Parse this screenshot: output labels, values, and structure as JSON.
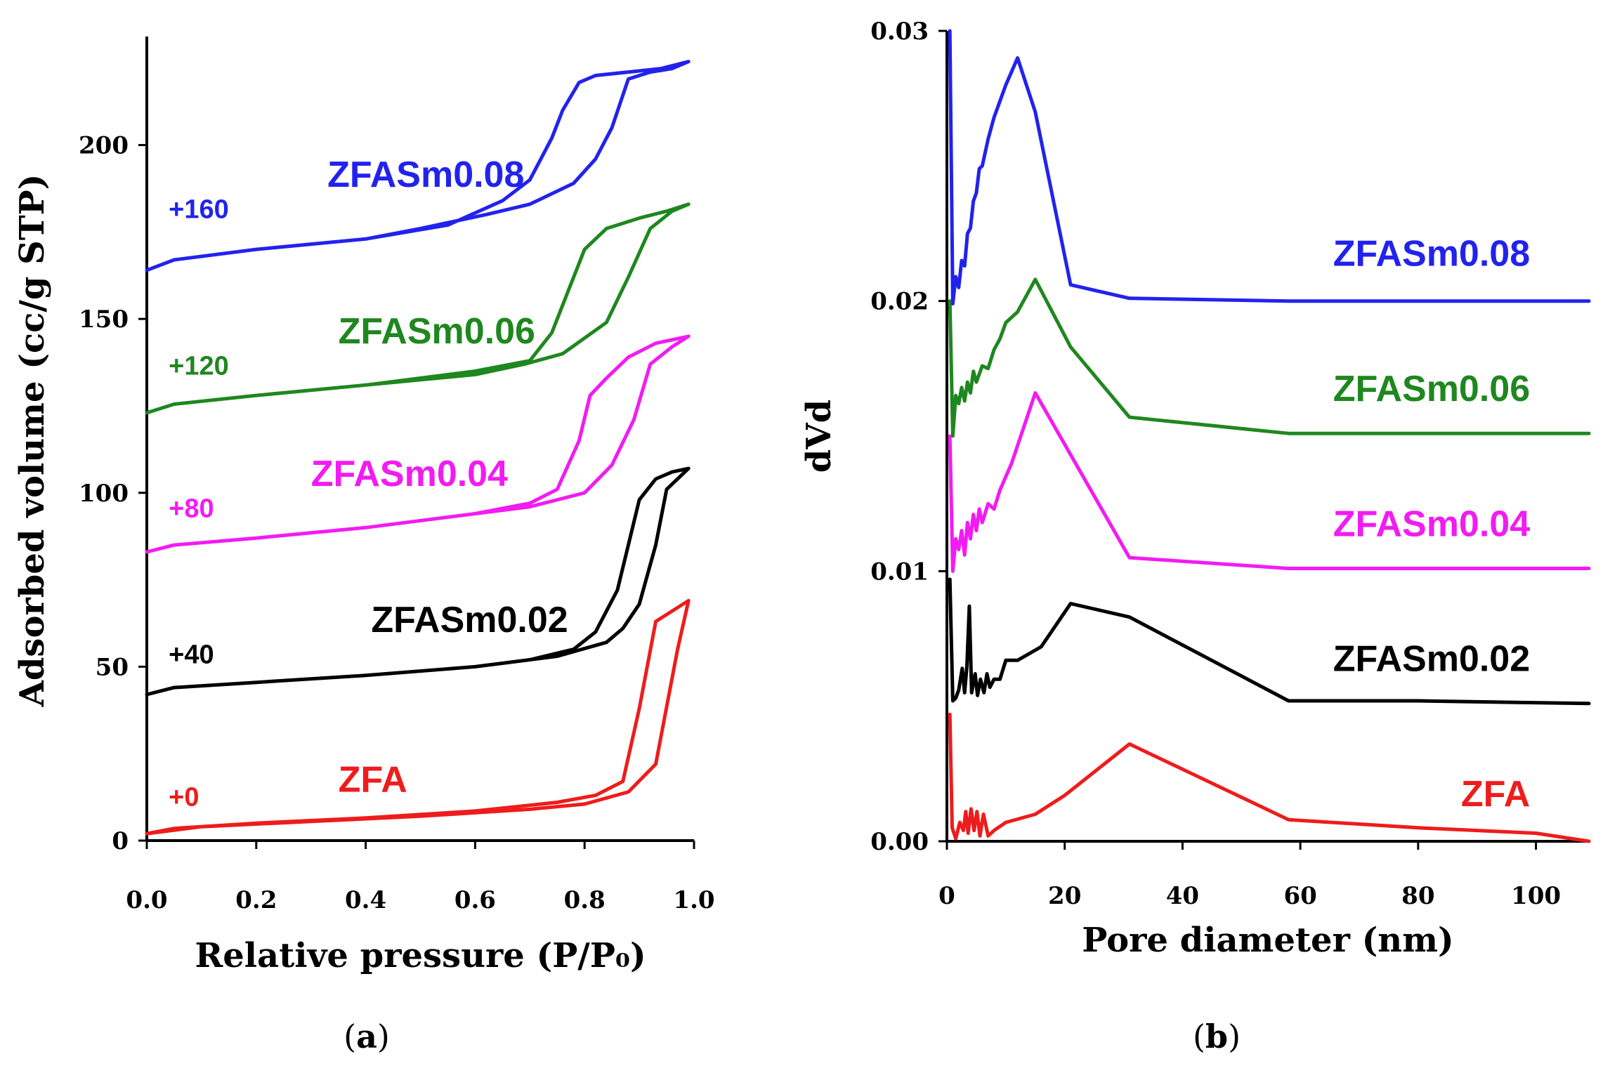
{
  "chart_data": [
    {
      "type": "line",
      "panel": "a",
      "caption": {
        "open": "(",
        "letter": "a",
        "close": ")"
      },
      "xlabel": "Relative pressure (P/P₀)",
      "ylabel": "Adsorbed volume (cc/g STP)",
      "xlim": [
        0,
        1.0
      ],
      "ylim": [
        0,
        230
      ],
      "xticks": [
        "0.0",
        "0.2",
        "0.4",
        "0.6",
        "0.8",
        "1.0"
      ],
      "xtick_values": [
        0,
        0.2,
        0.4,
        0.6,
        0.8,
        1.0
      ],
      "yticks": [
        "0",
        "50",
        "100",
        "150",
        "200"
      ],
      "ytick_values": [
        0,
        50,
        100,
        150,
        200
      ],
      "series": [
        {
          "name": "ZFA",
          "offset_label": "+0",
          "color": "#ee1c1c",
          "label_pos": [
            0.35,
            14
          ],
          "offset_pos": [
            0.04,
            10
          ],
          "points": [
            [
              0,
              2
            ],
            [
              0.05,
              3.5
            ],
            [
              0.2,
              5
            ],
            [
              0.4,
              6.5
            ],
            [
              0.6,
              8.5
            ],
            [
              0.75,
              11
            ],
            [
              0.82,
              13
            ],
            [
              0.87,
              17
            ],
            [
              0.9,
              38
            ],
            [
              0.93,
              63
            ],
            [
              0.96,
              66
            ],
            [
              0.99,
              69
            ],
            [
              0.97,
              55
            ],
            [
              0.93,
              22
            ],
            [
              0.88,
              14
            ],
            [
              0.8,
              10.5
            ],
            [
              0.7,
              9
            ],
            [
              0.5,
              7
            ],
            [
              0.3,
              5.5
            ],
            [
              0.1,
              4
            ],
            [
              0,
              2
            ]
          ]
        },
        {
          "name": "ZFASm0.02",
          "offset_label": "+40",
          "color": "#000000",
          "label_pos": [
            0.41,
            60
          ],
          "offset_pos": [
            0.04,
            51
          ],
          "points": [
            [
              0,
              42
            ],
            [
              0.05,
              44
            ],
            [
              0.2,
              45.5
            ],
            [
              0.4,
              47.5
            ],
            [
              0.6,
              50
            ],
            [
              0.7,
              52
            ],
            [
              0.78,
              55
            ],
            [
              0.82,
              60
            ],
            [
              0.86,
              72
            ],
            [
              0.88,
              85
            ],
            [
              0.9,
              98
            ],
            [
              0.93,
              104
            ],
            [
              0.96,
              106
            ],
            [
              0.99,
              107
            ],
            [
              0.95,
              101
            ],
            [
              0.93,
              85
            ],
            [
              0.9,
              68
            ],
            [
              0.87,
              61
            ],
            [
              0.84,
              57
            ],
            [
              0.75,
              53
            ],
            [
              0.6,
              50
            ],
            [
              0.4,
              47.5
            ],
            [
              0.2,
              45.5
            ],
            [
              0.05,
              44
            ],
            [
              0,
              42
            ]
          ]
        },
        {
          "name": "ZFASm0.04",
          "offset_label": "+80",
          "color": "#f21bf2",
          "label_pos": [
            0.3,
            102
          ],
          "offset_pos": [
            0.04,
            93
          ],
          "points": [
            [
              0,
              83
            ],
            [
              0.05,
              85
            ],
            [
              0.2,
              87
            ],
            [
              0.4,
              90
            ],
            [
              0.6,
              94
            ],
            [
              0.7,
              97
            ],
            [
              0.75,
              101
            ],
            [
              0.79,
              115
            ],
            [
              0.81,
              128
            ],
            [
              0.84,
              133
            ],
            [
              0.88,
              139
            ],
            [
              0.93,
              143
            ],
            [
              0.99,
              145
            ],
            [
              0.96,
              142
            ],
            [
              0.92,
              137
            ],
            [
              0.89,
              121
            ],
            [
              0.85,
              108
            ],
            [
              0.8,
              100
            ],
            [
              0.7,
              96
            ],
            [
              0.6,
              94
            ],
            [
              0.4,
              90
            ],
            [
              0.2,
              87
            ],
            [
              0.05,
              85
            ],
            [
              0,
              83
            ]
          ]
        },
        {
          "name": "ZFASm0.06",
          "offset_label": "+120",
          "color": "#1f871f",
          "label_pos": [
            0.35,
            143
          ],
          "offset_pos": [
            0.04,
            134
          ],
          "points": [
            [
              0,
              123
            ],
            [
              0.05,
              125.5
            ],
            [
              0.2,
              128
            ],
            [
              0.4,
              131
            ],
            [
              0.6,
              135
            ],
            [
              0.7,
              138
            ],
            [
              0.74,
              146
            ],
            [
              0.77,
              158
            ],
            [
              0.8,
              170
            ],
            [
              0.84,
              176
            ],
            [
              0.9,
              179
            ],
            [
              0.95,
              181
            ],
            [
              0.99,
              183
            ],
            [
              0.96,
              181
            ],
            [
              0.92,
              176
            ],
            [
              0.88,
              162
            ],
            [
              0.84,
              149
            ],
            [
              0.76,
              140
            ],
            [
              0.69,
              137
            ],
            [
              0.6,
              134
            ],
            [
              0.4,
              131
            ],
            [
              0.2,
              128
            ],
            [
              0.05,
              125.5
            ],
            [
              0,
              123
            ]
          ]
        },
        {
          "name": "ZFASm0.08",
          "offset_label": "+160",
          "color": "#2222ee",
          "label_pos": [
            0.33,
            188
          ],
          "offset_pos": [
            0.04,
            179
          ],
          "points": [
            [
              0,
              164
            ],
            [
              0.05,
              167
            ],
            [
              0.2,
              170
            ],
            [
              0.4,
              173
            ],
            [
              0.55,
              177
            ],
            [
              0.65,
              184
            ],
            [
              0.7,
              190
            ],
            [
              0.74,
              202
            ],
            [
              0.76,
              210
            ],
            [
              0.79,
              218
            ],
            [
              0.82,
              220
            ],
            [
              0.88,
              221
            ],
            [
              0.94,
              222
            ],
            [
              0.99,
              224
            ],
            [
              0.96,
              222
            ],
            [
              0.92,
              221
            ],
            [
              0.88,
              219
            ],
            [
              0.85,
              205
            ],
            [
              0.82,
              196
            ],
            [
              0.78,
              189
            ],
            [
              0.7,
              183
            ],
            [
              0.62,
              180
            ],
            [
              0.5,
              176
            ],
            [
              0.4,
              173
            ],
            [
              0.2,
              170
            ],
            [
              0.05,
              167
            ],
            [
              0,
              164
            ]
          ]
        }
      ]
    },
    {
      "type": "line",
      "panel": "b",
      "caption": {
        "open": "(",
        "letter": "b",
        "close": ")"
      },
      "xlabel": "Pore diameter (nm)",
      "ylabel": "dVd",
      "xlim": [
        0,
        109
      ],
      "ylim": [
        0,
        0.03
      ],
      "xticks": [
        "0",
        "20",
        "40",
        "60",
        "80",
        "100"
      ],
      "xtick_values": [
        0,
        20,
        40,
        60,
        80,
        100
      ],
      "yticks": [
        "0.00",
        "0.01",
        "0.02",
        "0.03"
      ],
      "ytick_values": [
        0,
        0.01,
        0.02,
        0.03
      ],
      "series": [
        {
          "name": "ZFA",
          "color": "#ee1c1c",
          "label_pos": [
            99,
            0.0013
          ],
          "points": [
            [
              0.5,
              0.0047
            ],
            [
              0.9,
              0.0005
            ],
            [
              1.5,
              0.0001
            ],
            [
              2.2,
              0.0007
            ],
            [
              2.8,
              0.0004
            ],
            [
              3.2,
              0.0011
            ],
            [
              3.6,
              0.0003
            ],
            [
              4.1,
              0.0012
            ],
            [
              4.6,
              0.0004
            ],
            [
              5.1,
              0.0011
            ],
            [
              5.6,
              0.0002
            ],
            [
              6.2,
              0.001
            ],
            [
              7,
              0.0002
            ],
            [
              8,
              0.0004
            ],
            [
              10,
              0.0007
            ],
            [
              15,
              0.001
            ],
            [
              20,
              0.0017
            ],
            [
              31,
              0.0036
            ],
            [
              58,
              0.0008
            ],
            [
              80,
              0.0005
            ],
            [
              100,
              0.0003
            ],
            [
              109,
              0
            ]
          ]
        },
        {
          "name": "ZFASm0.02",
          "color": "#000000",
          "label_pos": [
            99,
            0.0063
          ],
          "points": [
            [
              0.5,
              0.0097
            ],
            [
              1,
              0.0052
            ],
            [
              1.5,
              0.0053
            ],
            [
              2,
              0.0056
            ],
            [
              2.6,
              0.0064
            ],
            [
              3,
              0.0055
            ],
            [
              3.4,
              0.0065
            ],
            [
              3.8,
              0.0087
            ],
            [
              4.2,
              0.0055
            ],
            [
              4.8,
              0.0062
            ],
            [
              5.2,
              0.0054
            ],
            [
              5.7,
              0.006
            ],
            [
              6.3,
              0.0055
            ],
            [
              6.8,
              0.0062
            ],
            [
              7.3,
              0.0057
            ],
            [
              8,
              0.006
            ],
            [
              9,
              0.006
            ],
            [
              10,
              0.0067
            ],
            [
              12,
              0.0067
            ],
            [
              16,
              0.0072
            ],
            [
              21,
              0.0088
            ],
            [
              31,
              0.0083
            ],
            [
              58,
              0.0052
            ],
            [
              80,
              0.0052
            ],
            [
              109,
              0.0051
            ]
          ]
        },
        {
          "name": "ZFASm0.04",
          "color": "#f21bf2",
          "label_pos": [
            99,
            0.0113
          ],
          "points": [
            [
              0.5,
              0.015
            ],
            [
              1,
              0.01
            ],
            [
              1.5,
              0.0112
            ],
            [
              2,
              0.0108
            ],
            [
              2.5,
              0.0115
            ],
            [
              3,
              0.0106
            ],
            [
              3.5,
              0.0118
            ],
            [
              4,
              0.0112
            ],
            [
              4.5,
              0.0121
            ],
            [
              5,
              0.0115
            ],
            [
              5.5,
              0.0123
            ],
            [
              6,
              0.0118
            ],
            [
              7,
              0.0125
            ],
            [
              8,
              0.0123
            ],
            [
              9,
              0.013
            ],
            [
              11,
              0.014
            ],
            [
              15,
              0.0166
            ],
            [
              31,
              0.0105
            ],
            [
              58,
              0.0101
            ],
            [
              80,
              0.0101
            ],
            [
              109,
              0.0101
            ]
          ]
        },
        {
          "name": "ZFASm0.06",
          "color": "#1f871f",
          "label_pos": [
            99,
            0.0163
          ],
          "points": [
            [
              0.5,
              0.02
            ],
            [
              1,
              0.015
            ],
            [
              1.5,
              0.0165
            ],
            [
              2,
              0.0162
            ],
            [
              2.5,
              0.0168
            ],
            [
              3,
              0.0163
            ],
            [
              3.5,
              0.017
            ],
            [
              4,
              0.0166
            ],
            [
              4.5,
              0.0174
            ],
            [
              5,
              0.017
            ],
            [
              6,
              0.0176
            ],
            [
              7,
              0.0175
            ],
            [
              8,
              0.0182
            ],
            [
              9,
              0.0186
            ],
            [
              10,
              0.0192
            ],
            [
              12,
              0.0196
            ],
            [
              15,
              0.0208
            ],
            [
              21,
              0.0183
            ],
            [
              31,
              0.0157
            ],
            [
              58,
              0.0151
            ],
            [
              80,
              0.0151
            ],
            [
              109,
              0.0151
            ]
          ]
        },
        {
          "name": "ZFASm0.08",
          "color": "#2222ee",
          "label_pos": [
            99,
            0.0213
          ],
          "points": [
            [
              0.5,
              0.03
            ],
            [
              1,
              0.0199
            ],
            [
              1.5,
              0.0209
            ],
            [
              2,
              0.0205
            ],
            [
              2.5,
              0.0215
            ],
            [
              3,
              0.0213
            ],
            [
              3.5,
              0.0225
            ],
            [
              4,
              0.0227
            ],
            [
              4.5,
              0.0237
            ],
            [
              5,
              0.024
            ],
            [
              5.5,
              0.0249
            ],
            [
              6,
              0.025
            ],
            [
              7,
              0.026
            ],
            [
              8,
              0.0268
            ],
            [
              9,
              0.0274
            ],
            [
              10,
              0.028
            ],
            [
              12,
              0.029
            ],
            [
              15,
              0.027
            ],
            [
              21,
              0.0206
            ],
            [
              31,
              0.0201
            ],
            [
              58,
              0.02
            ],
            [
              80,
              0.02
            ],
            [
              109,
              0.02
            ]
          ]
        }
      ]
    }
  ]
}
